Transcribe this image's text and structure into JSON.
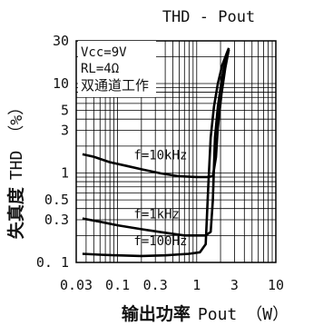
{
  "chart_data": {
    "type": "line",
    "title": "THD - Pout",
    "xlabel": {
      "prefix": "输出功率",
      "quantity": "Pout",
      "unit": "（W）"
    },
    "ylabel": {
      "prefix": "失真度",
      "quantity": "THD",
      "unit": "（%）"
    },
    "x_scale": "log",
    "y_scale": "log",
    "xlim": [
      0.03,
      10
    ],
    "ylim": [
      0.1,
      30
    ],
    "grid": true,
    "x_ticks": [
      {
        "value": 0.03,
        "label": "0.03"
      },
      {
        "value": 0.1,
        "label": "0.1"
      },
      {
        "value": 0.3,
        "label": "0.3"
      },
      {
        "value": 1,
        "label": "1"
      },
      {
        "value": 3,
        "label": "3"
      },
      {
        "value": 10,
        "label": "10"
      }
    ],
    "y_ticks": [
      {
        "value": 0.1,
        "label": "0. 1"
      },
      {
        "value": 0.3,
        "label": "0.3"
      },
      {
        "value": 0.5,
        "label": "0.5"
      },
      {
        "value": 1,
        "label": "1"
      },
      {
        "value": 3,
        "label": "3"
      },
      {
        "value": 5,
        "label": "5"
      },
      {
        "value": 10,
        "label": "10"
      },
      {
        "value": 30,
        "label": "30"
      }
    ],
    "conditions": [
      "Vcc=9V",
      "RL=4Ω",
      "双通道工作"
    ],
    "series": [
      {
        "name": "f=10kHz",
        "points": [
          {
            "x": 0.036,
            "y": 1.62
          },
          {
            "x": 0.05,
            "y": 1.52
          },
          {
            "x": 0.08,
            "y": 1.32
          },
          {
            "x": 0.13,
            "y": 1.2
          },
          {
            "x": 0.2,
            "y": 1.1
          },
          {
            "x": 0.35,
            "y": 0.99
          },
          {
            "x": 0.6,
            "y": 0.92
          },
          {
            "x": 1.0,
            "y": 0.9
          },
          {
            "x": 1.35,
            "y": 0.9
          },
          {
            "x": 1.6,
            "y": 0.92
          },
          {
            "x": 1.75,
            "y": 1.5
          },
          {
            "x": 1.85,
            "y": 3.2
          },
          {
            "x": 2.05,
            "y": 7.5
          },
          {
            "x": 2.3,
            "y": 15
          },
          {
            "x": 2.55,
            "y": 24
          }
        ]
      },
      {
        "name": "f=1kHz",
        "points": [
          {
            "x": 0.036,
            "y": 0.31
          },
          {
            "x": 0.06,
            "y": 0.285
          },
          {
            "x": 0.1,
            "y": 0.26
          },
          {
            "x": 0.2,
            "y": 0.235
          },
          {
            "x": 0.4,
            "y": 0.215
          },
          {
            "x": 0.7,
            "y": 0.2
          },
          {
            "x": 1.0,
            "y": 0.2
          },
          {
            "x": 1.3,
            "y": 0.2
          },
          {
            "x": 1.5,
            "y": 0.22
          },
          {
            "x": 1.6,
            "y": 0.5
          },
          {
            "x": 1.7,
            "y": 2.5
          },
          {
            "x": 1.85,
            "y": 5.5
          },
          {
            "x": 2.1,
            "y": 12
          },
          {
            "x": 2.4,
            "y": 21
          },
          {
            "x": 2.55,
            "y": 24
          }
        ]
      },
      {
        "name": "f=100Hz",
        "points": [
          {
            "x": 0.036,
            "y": 0.125
          },
          {
            "x": 0.06,
            "y": 0.122
          },
          {
            "x": 0.1,
            "y": 0.12
          },
          {
            "x": 0.2,
            "y": 0.118
          },
          {
            "x": 0.4,
            "y": 0.12
          },
          {
            "x": 0.8,
            "y": 0.125
          },
          {
            "x": 1.1,
            "y": 0.13
          },
          {
            "x": 1.3,
            "y": 0.16
          },
          {
            "x": 1.4,
            "y": 0.7
          },
          {
            "x": 1.5,
            "y": 2.5
          },
          {
            "x": 1.65,
            "y": 5.5
          },
          {
            "x": 1.85,
            "y": 10
          },
          {
            "x": 2.1,
            "y": 16
          },
          {
            "x": 2.4,
            "y": 22
          },
          {
            "x": 2.55,
            "y": 25
          }
        ]
      }
    ]
  }
}
